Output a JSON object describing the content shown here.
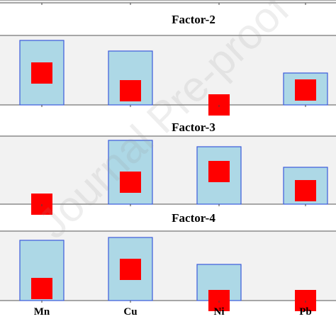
{
  "chart_data": [
    {
      "type": "bar",
      "title": "",
      "categories": [
        "Mn",
        "Cu",
        "Ni",
        "Pb"
      ],
      "series": [
        {
          "values": [
            null,
            null,
            null,
            null
          ]
        },
        {
          "values": [
            null,
            null,
            null,
            null
          ]
        }
      ],
      "note": "top panel is cut off at the image edge"
    },
    {
      "type": "bar",
      "title": "Factor-2",
      "categories": [
        "Mn",
        "Cu",
        "Ni",
        "Pb"
      ],
      "series": [
        {
          "values": [
            0.91,
            0.76,
            0.0,
            0.45
          ]
        },
        {
          "values": [
            0.45,
            0.2,
            0.0,
            0.21
          ]
        }
      ],
      "ylim": [
        0,
        1
      ]
    },
    {
      "type": "bar",
      "title": "Factor-3",
      "categories": [
        "Mn",
        "Cu",
        "Ni",
        "Pb"
      ],
      "series": [
        {
          "values": [
            0.0,
            0.9,
            0.81,
            0.52
          ]
        },
        {
          "values": [
            0.0,
            0.31,
            0.46,
            0.19
          ]
        }
      ],
      "ylim": [
        0,
        1
      ]
    },
    {
      "type": "bar",
      "title": "Factor-4",
      "categories": [
        "Mn",
        "Cu",
        "Ni",
        "Pb"
      ],
      "series": [
        {
          "values": [
            0.85,
            0.89,
            0.51,
            0.0
          ]
        },
        {
          "values": [
            0.17,
            0.44,
            0.0,
            0.0
          ]
        }
      ],
      "ylim": [
        0,
        1
      ]
    }
  ],
  "colors": {
    "bar_fill": "#add8e6",
    "bar_stroke": "#3b5bdb",
    "marker": "#ff0000",
    "panel_bg": "#f2f2f2"
  },
  "watermark": "Journal Pre-proof"
}
